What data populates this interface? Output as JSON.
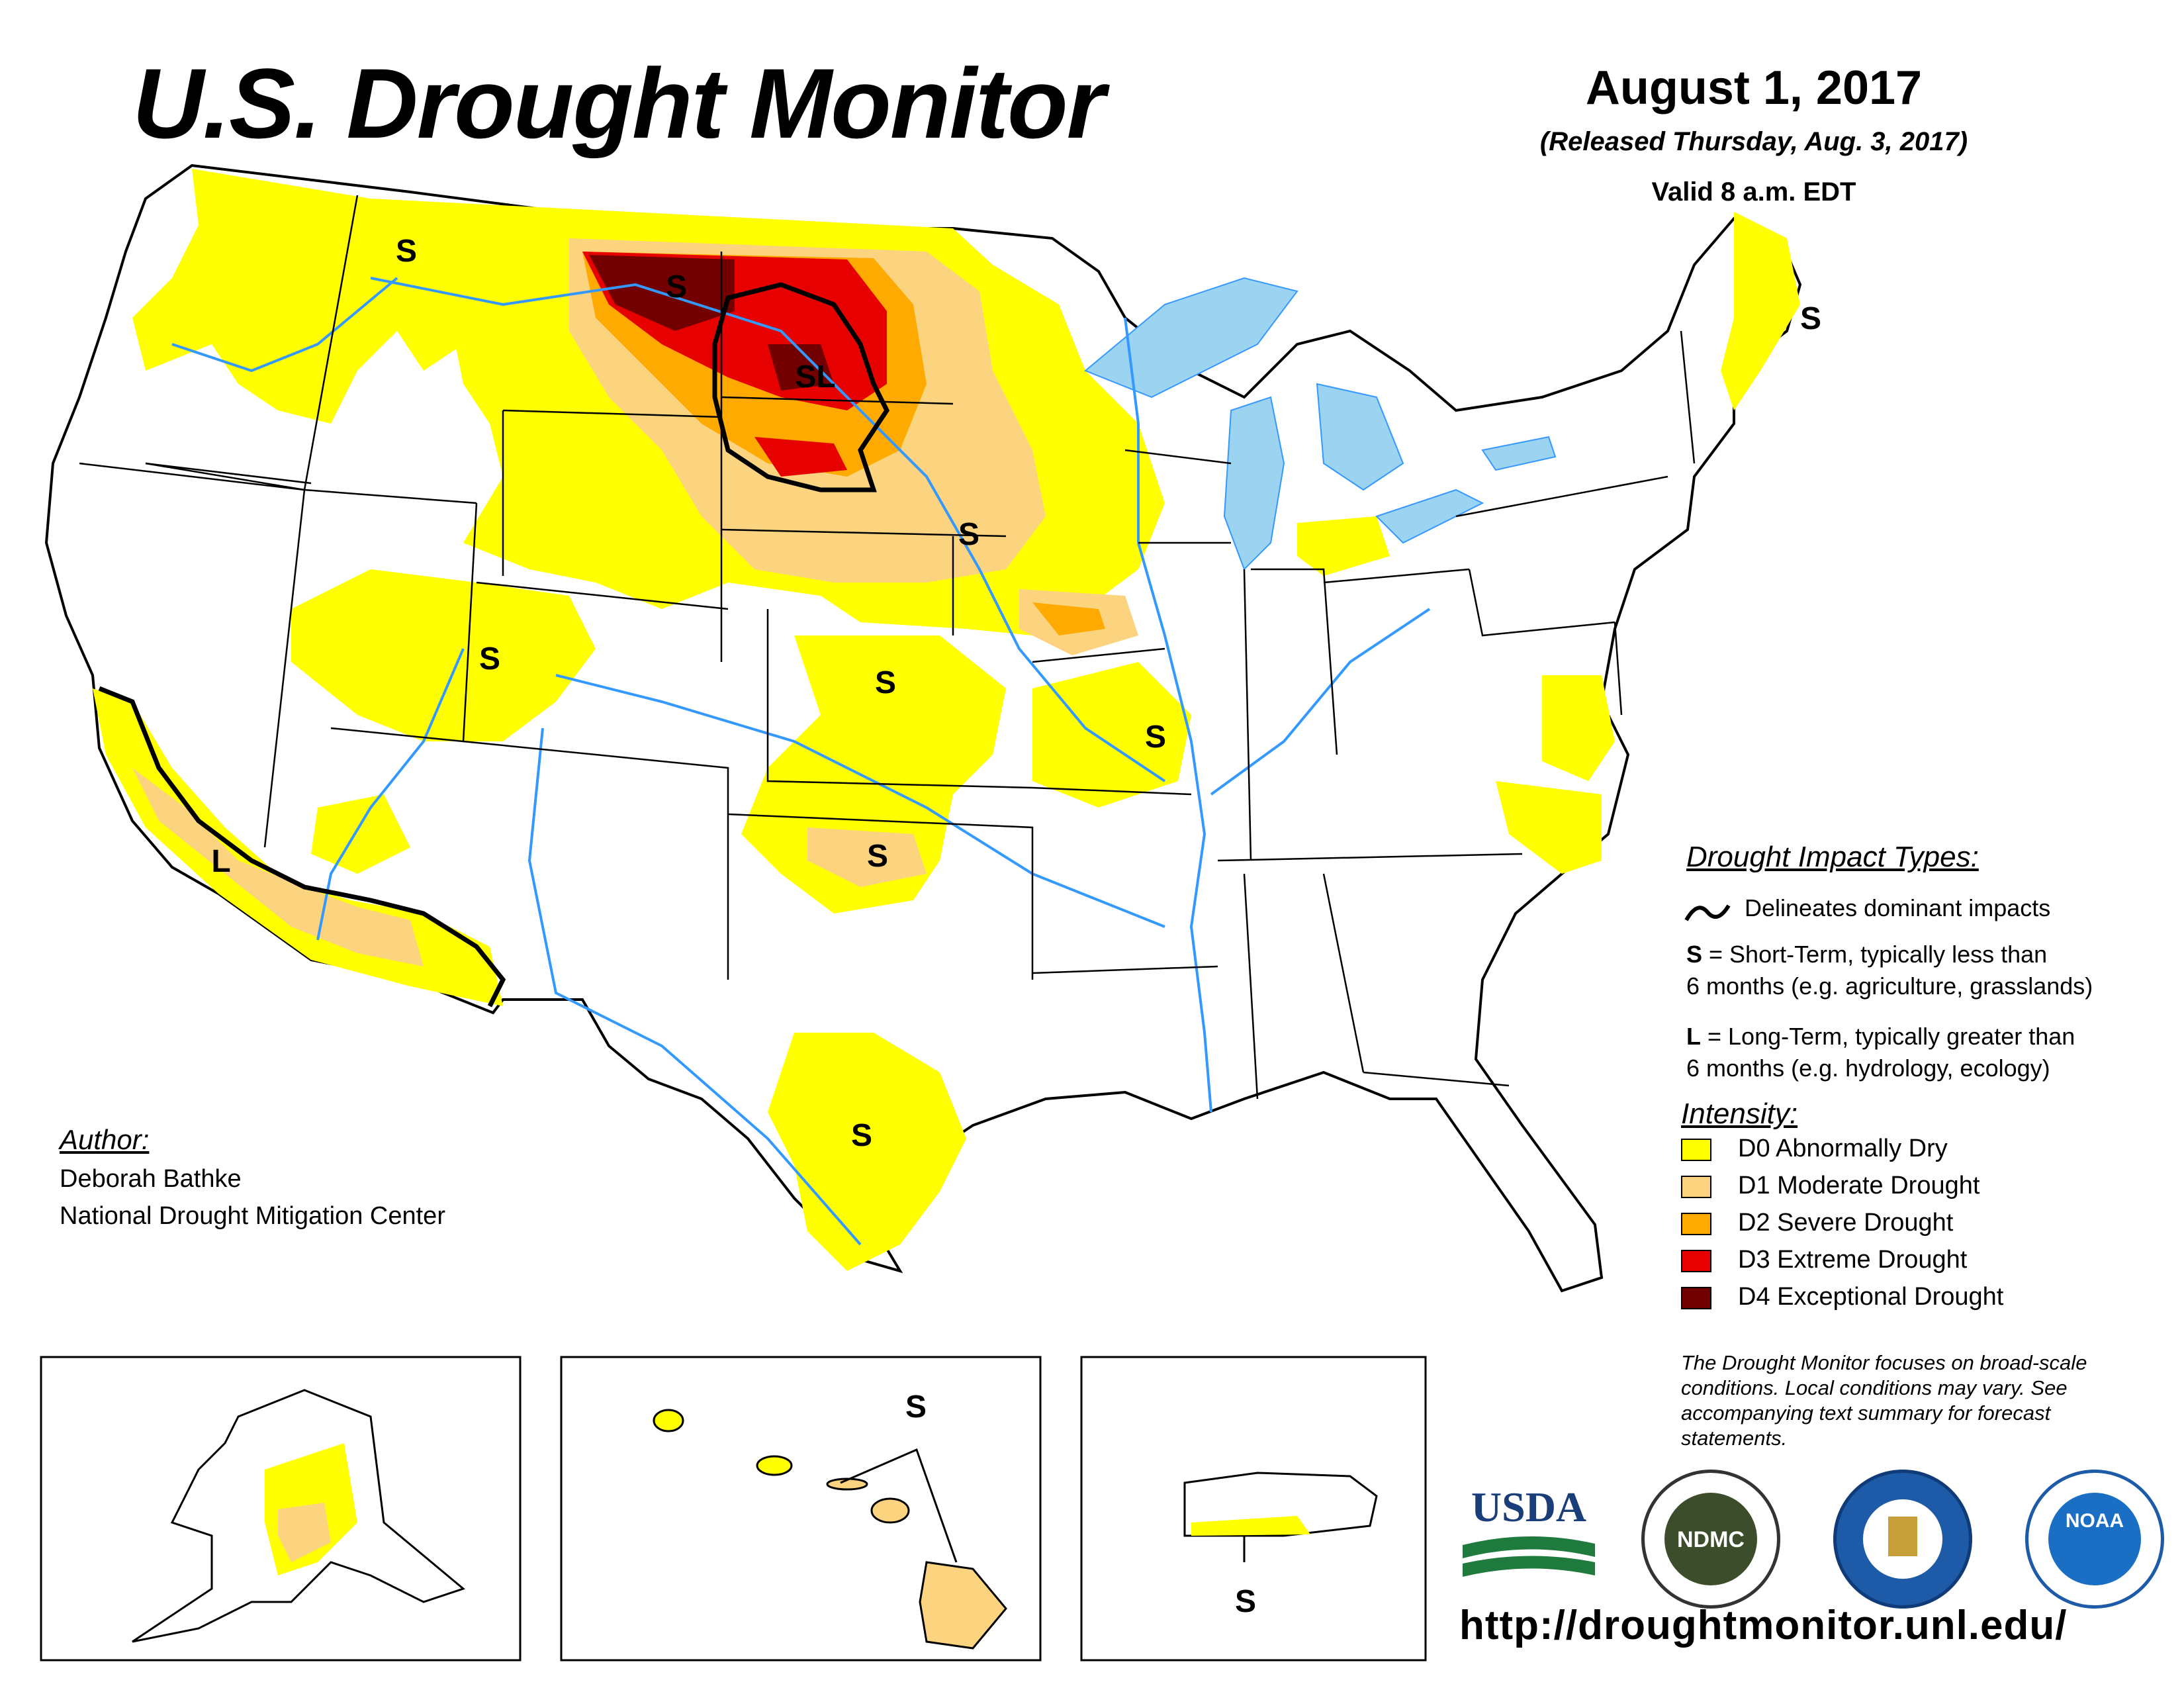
{
  "header": {
    "title": "U.S. Drought Monitor",
    "date": "August 1, 2017",
    "released": "(Released Thursday, Aug. 3, 2017)",
    "valid": "Valid 8 a.m. EDT"
  },
  "author": {
    "heading": "Author:",
    "name": "Deborah Bathke",
    "org": "National Drought Mitigation Center"
  },
  "impact_types": {
    "heading": "Drought Impact Types:",
    "delineates": "Delineates dominant impacts",
    "short_term_key": "S",
    "short_term_line1": " = Short-Term, typically less than",
    "short_term_line2": "6 months (e.g. agriculture, grasslands)",
    "long_term_key": "L",
    "long_term_line1": " = Long-Term, typically greater than",
    "long_term_line2": "6 months (e.g. hydrology, ecology)"
  },
  "intensity": {
    "heading": "Intensity:",
    "levels": [
      {
        "label": "D0 Abnormally Dry",
        "color": "#ffff00"
      },
      {
        "label": "D1 Moderate Drought",
        "color": "#fcd37f"
      },
      {
        "label": "D2 Severe Drought",
        "color": "#ffaa00"
      },
      {
        "label": "D3 Extreme Drought",
        "color": "#e60000"
      },
      {
        "label": "D4 Exceptional Drought",
        "color": "#730000"
      }
    ]
  },
  "impact_labels": {
    "s": "S",
    "l": "L",
    "sl": "SL"
  },
  "note": "The Drought Monitor focuses on broad-scale conditions. Local conditions may vary. See accompanying text summary for forecast statements.",
  "logos": {
    "usda": "USDA",
    "ndmc": "NDMC",
    "noaa": "NOAA"
  },
  "url": "http://droughtmonitor.unl.edu/",
  "colors": {
    "water": "#9cd3f0",
    "river": "#3399ff",
    "boundary": "#000000"
  }
}
